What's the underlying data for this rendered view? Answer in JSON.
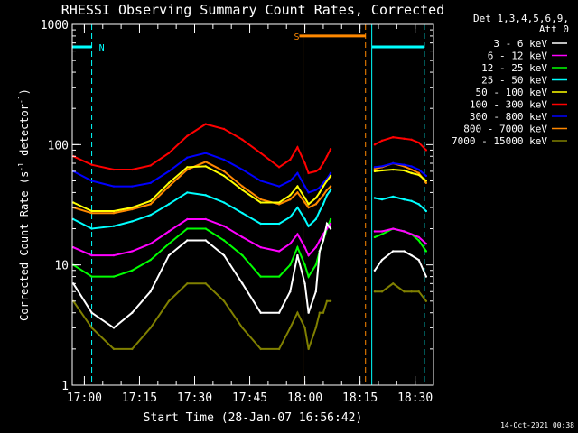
{
  "chart_data": {
    "type": "line",
    "title": "RHESSI Observing Summary Count Rates, Corrected",
    "xlabel": "Start Time (28-Jan-07 16:56:42)",
    "ylabel_main": "Corrected Count Rate (s",
    "ylabel_sup1": "-1",
    "ylabel_mid": " detector",
    "ylabel_sup2": "-1",
    "ylabel_end": ")",
    "yscale": "log",
    "ylim": [
      1,
      1000
    ],
    "xlim_minutes_after_1650": [
      6.7,
      105
    ],
    "x_ticks": [
      {
        "label": "17:00",
        "min": 10
      },
      {
        "label": "17:15",
        "min": 25
      },
      {
        "label": "17:30",
        "min": 40
      },
      {
        "label": "17:45",
        "min": 55
      },
      {
        "label": "18:00",
        "min": 70
      },
      {
        "label": "18:15",
        "min": 85
      },
      {
        "label": "18:30",
        "min": 100
      }
    ],
    "y_ticks": [
      {
        "label": "1",
        "value": 1
      },
      {
        "label": "10",
        "value": 10
      },
      {
        "label": "100",
        "value": 100
      },
      {
        "label": "1000",
        "value": 1000
      }
    ],
    "legend_header": [
      "Det 1,3,4,5,6,9,",
      "Att 0"
    ],
    "legend_position": "right",
    "grid": false,
    "data_gap_minutes": [
      [
        80.7,
        88.2
      ]
    ],
    "series": [
      {
        "name": "3 - 6 keV",
        "color": "#ffffff",
        "x": [
          7,
          12,
          18,
          23,
          28,
          33,
          38,
          43,
          48,
          53,
          58,
          63,
          66,
          68,
          70,
          71,
          73,
          74,
          75,
          76,
          77,
          89,
          91,
          94,
          97,
          99,
          101,
          103
        ],
        "y": [
          7,
          4,
          3,
          4,
          6,
          12,
          16,
          16,
          12,
          7,
          4,
          4,
          6,
          12,
          7,
          4,
          6,
          13,
          16,
          22,
          20,
          9,
          11,
          13,
          13,
          12,
          11,
          8
        ]
      },
      {
        "name": "6 - 12 keV",
        "color": "#ff00ff",
        "x": [
          7,
          12,
          18,
          23,
          28,
          33,
          38,
          43,
          48,
          53,
          58,
          63,
          66,
          68,
          70,
          71,
          73,
          74,
          75,
          76,
          77,
          89,
          91,
          94,
          97,
          99,
          101,
          103
        ],
        "y": [
          14,
          12,
          12,
          13,
          15,
          19,
          24,
          24,
          21,
          17,
          14,
          13,
          15,
          18,
          14,
          12,
          14,
          16,
          18,
          20,
          22,
          19,
          19,
          20,
          19,
          18,
          17,
          15
        ]
      },
      {
        "name": "12 - 25 keV",
        "color": "#00ff00",
        "x": [
          7,
          12,
          18,
          23,
          28,
          33,
          38,
          43,
          48,
          53,
          58,
          63,
          66,
          68,
          70,
          71,
          73,
          74,
          75,
          76,
          77,
          89,
          91,
          94,
          97,
          99,
          101,
          103
        ],
        "y": [
          10,
          8,
          8,
          9,
          11,
          15,
          20,
          20,
          16,
          12,
          8,
          8,
          10,
          14,
          10,
          8,
          10,
          13,
          16,
          20,
          24,
          17,
          18,
          20,
          19,
          18,
          16,
          13
        ]
      },
      {
        "name": "25 - 50 keV",
        "color": "#00ffff",
        "x": [
          7,
          12,
          18,
          23,
          28,
          33,
          38,
          43,
          48,
          53,
          58,
          63,
          66,
          68,
          70,
          71,
          73,
          74,
          75,
          76,
          77,
          89,
          91,
          94,
          97,
          99,
          101,
          103
        ],
        "y": [
          24,
          20,
          21,
          23,
          26,
          32,
          40,
          38,
          33,
          27,
          22,
          22,
          25,
          30,
          24,
          21,
          24,
          28,
          32,
          38,
          42,
          36,
          35,
          37,
          35,
          34,
          32,
          28
        ]
      },
      {
        "name": "50 - 100 keV",
        "color": "#ffff00",
        "x": [
          7,
          12,
          18,
          23,
          28,
          33,
          38,
          43,
          48,
          53,
          58,
          63,
          66,
          68,
          70,
          71,
          73,
          74,
          75,
          76,
          77,
          89,
          91,
          94,
          97,
          99,
          101,
          103
        ],
        "y": [
          33,
          28,
          28,
          30,
          34,
          48,
          65,
          66,
          55,
          42,
          33,
          33,
          38,
          45,
          36,
          32,
          36,
          40,
          45,
          50,
          55,
          60,
          61,
          62,
          61,
          58,
          56,
          50
        ]
      },
      {
        "name": "100 - 300 keV",
        "color": "#ff0000",
        "x": [
          7,
          12,
          18,
          23,
          28,
          33,
          38,
          43,
          48,
          53,
          58,
          63,
          66,
          68,
          70,
          71,
          73,
          74,
          75,
          76,
          77,
          89,
          91,
          94,
          97,
          99,
          101,
          103
        ],
        "y": [
          80,
          68,
          62,
          62,
          67,
          85,
          118,
          148,
          135,
          110,
          85,
          65,
          75,
          95,
          70,
          58,
          60,
          63,
          70,
          80,
          92,
          100,
          108,
          115,
          112,
          110,
          104,
          90
        ]
      },
      {
        "name": "300 - 800 keV",
        "color": "#0000ff",
        "x": [
          7,
          12,
          18,
          23,
          28,
          33,
          38,
          43,
          48,
          53,
          58,
          63,
          66,
          68,
          70,
          71,
          73,
          74,
          75,
          76,
          77,
          89,
          91,
          94,
          97,
          99,
          101,
          103
        ],
        "y": [
          60,
          50,
          45,
          45,
          48,
          60,
          78,
          85,
          75,
          62,
          50,
          45,
          50,
          58,
          45,
          40,
          42,
          44,
          48,
          52,
          58,
          65,
          66,
          70,
          68,
          66,
          62,
          55
        ]
      },
      {
        "name": "800 - 7000 keV",
        "color": "#ff8800",
        "x": [
          7,
          12,
          18,
          23,
          28,
          33,
          38,
          43,
          48,
          53,
          58,
          63,
          66,
          68,
          70,
          71,
          73,
          74,
          75,
          76,
          77,
          89,
          91,
          94,
          97,
          99,
          101,
          103
        ],
        "y": [
          30,
          27,
          27,
          29,
          32,
          45,
          62,
          72,
          60,
          45,
          35,
          32,
          35,
          40,
          33,
          30,
          32,
          35,
          38,
          42,
          45,
          63,
          65,
          70,
          66,
          62,
          58,
          48
        ]
      },
      {
        "name": "7000 - 15000 keV",
        "color": "#808000",
        "x": [
          7,
          12,
          18,
          23,
          28,
          33,
          38,
          43,
          48,
          53,
          58,
          63,
          66,
          68,
          70,
          71,
          73,
          74,
          75,
          76,
          77,
          89,
          91,
          94,
          97,
          99,
          101,
          103
        ],
        "y": [
          5,
          3,
          2,
          2,
          3,
          5,
          7,
          7,
          5,
          3,
          2,
          2,
          3,
          4,
          3,
          2,
          3,
          4,
          4,
          5,
          5,
          6,
          6,
          7,
          6,
          6,
          6,
          5
        ]
      }
    ],
    "annotations": [
      {
        "label": "N",
        "color": "#00ffff",
        "x_start": 6.7,
        "x_end": 12,
        "x_dash": 12,
        "y": 650
      },
      {
        "label": "S",
        "color": "#ff8800",
        "x_start": 68.5,
        "x_end": 86.5,
        "x_dash": 86.5,
        "y": 800
      },
      {
        "label": "",
        "color": "#00ffff",
        "x_start": 88.2,
        "x_end": 102.5,
        "x_dash": 102.5,
        "y": 650
      }
    ],
    "orange_solid_vline_min": 69.5,
    "cyan_solid_vline_min": 88.2
  },
  "footer": {
    "timestamp": "14-Oct-2021 00:38"
  }
}
